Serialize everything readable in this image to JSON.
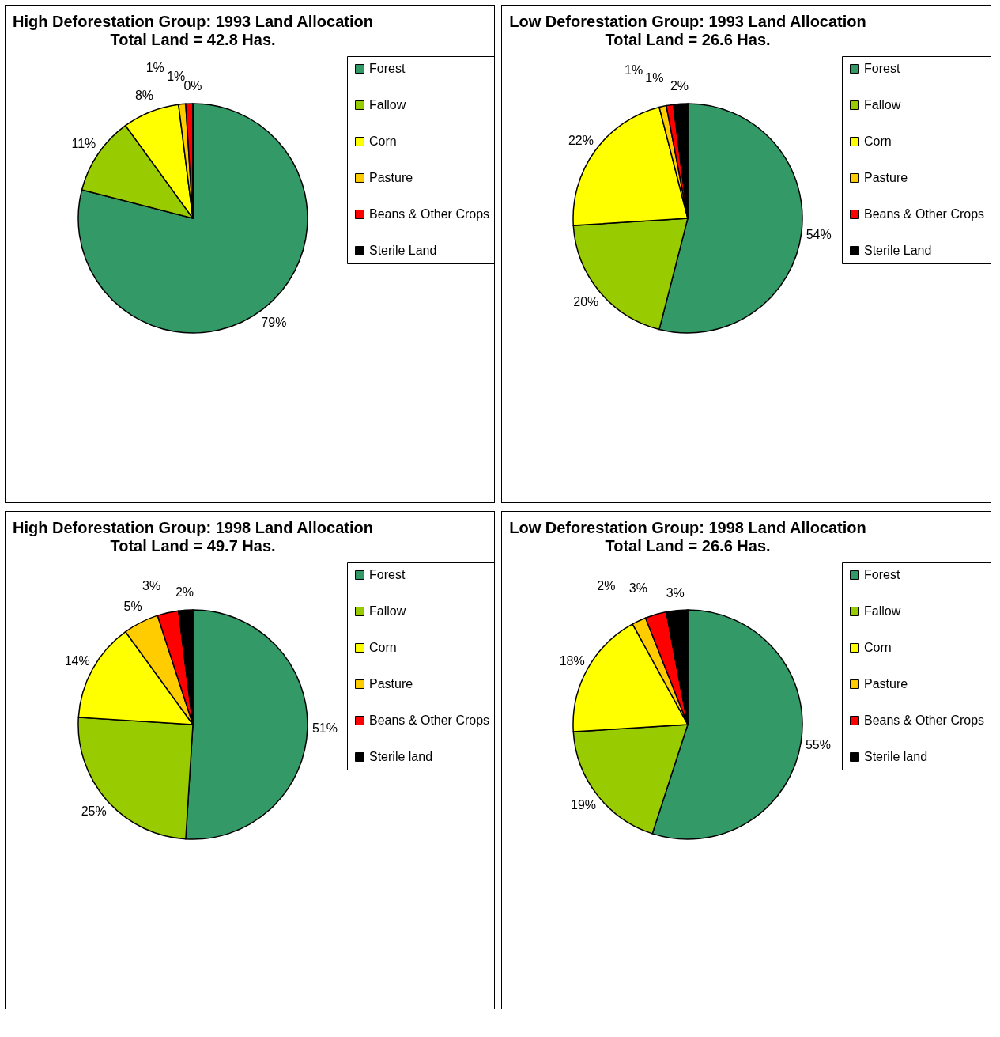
{
  "chart_data": [
    {
      "type": "pie",
      "title": "High Deforestation Group: 1993 Land Allocation",
      "subtitle": "Total Land = 42.8 Has.",
      "categories": [
        "Forest",
        "Fallow",
        "Corn",
        "Pasture",
        "Beans & Other Crops",
        "Sterile Land"
      ],
      "values": [
        79,
        11,
        8,
        1,
        1,
        0
      ],
      "value_labels": [
        "79%",
        "11%",
        "8%",
        "1%",
        "1%",
        "0%"
      ],
      "colors": [
        "#339966",
        "#99cc00",
        "#ffff00",
        "#ffcc00",
        "#ff0000",
        "#000000"
      ],
      "legend": "right"
    },
    {
      "type": "pie",
      "title": "Low Deforestation Group: 1993 Land Allocation",
      "subtitle": "Total Land = 26.6 Has.",
      "categories": [
        "Forest",
        "Fallow",
        "Corn",
        "Pasture",
        "Beans & Other Crops",
        "Sterile Land"
      ],
      "values": [
        54,
        20,
        22,
        1,
        1,
        2
      ],
      "value_labels": [
        "54%",
        "20%",
        "22%",
        "1%",
        "1%",
        "2%"
      ],
      "colors": [
        "#339966",
        "#99cc00",
        "#ffff00",
        "#ffcc00",
        "#ff0000",
        "#000000"
      ],
      "legend": "right"
    },
    {
      "type": "pie",
      "title": "High Deforestation Group: 1998 Land Allocation",
      "subtitle": "Total Land = 49.7 Has.",
      "categories": [
        "Forest",
        "Fallow",
        "Corn",
        "Pasture",
        "Beans & Other Crops",
        "Sterile land"
      ],
      "values": [
        51,
        25,
        14,
        5,
        3,
        2
      ],
      "value_labels": [
        "51%",
        "25%",
        "14%",
        "5%",
        "3%",
        "2%"
      ],
      "colors": [
        "#339966",
        "#99cc00",
        "#ffff00",
        "#ffcc00",
        "#ff0000",
        "#000000"
      ],
      "legend": "right"
    },
    {
      "type": "pie",
      "title": "Low Deforestation Group: 1998 Land Allocation",
      "subtitle": "Total Land = 26.6 Has.",
      "categories": [
        "Forest",
        "Fallow",
        "Corn",
        "Pasture",
        "Beans & Other Crops",
        "Sterile land"
      ],
      "values": [
        55,
        19,
        18,
        2,
        3,
        3
      ],
      "value_labels": [
        "55%",
        "19%",
        "18%",
        "2%",
        "3%",
        "3%"
      ],
      "colors": [
        "#339966",
        "#99cc00",
        "#ffff00",
        "#ffcc00",
        "#ff0000",
        "#000000"
      ],
      "legend": "right"
    }
  ]
}
